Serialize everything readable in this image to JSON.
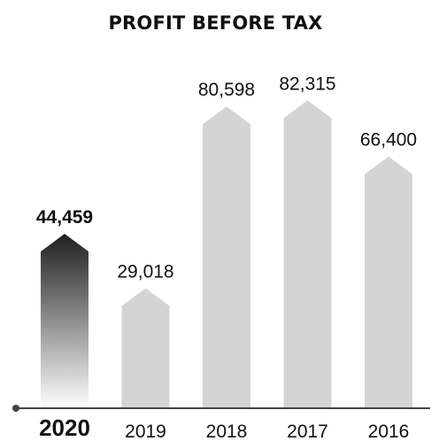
{
  "chart_data": {
    "type": "bar",
    "title": "PROFIT BEFORE TAX",
    "categories": [
      "2020",
      "2019",
      "2018",
      "2017",
      "2016"
    ],
    "values": [
      44459,
      29018,
      80598,
      82315,
      66400
    ],
    "value_labels": [
      "44,459",
      "29,018",
      "80,598",
      "82,315",
      "66,400"
    ],
    "highlight_index": 0,
    "colors": {
      "bar": "#d4d4d4",
      "highlight_top": "#1e1e1e",
      "highlight_bottom": "#ffffff",
      "axis": "#444444",
      "text": "#111111"
    },
    "xlabel": "",
    "ylabel": "",
    "ylim": [
      0,
      90000
    ],
    "grid": false,
    "legend": "none"
  }
}
